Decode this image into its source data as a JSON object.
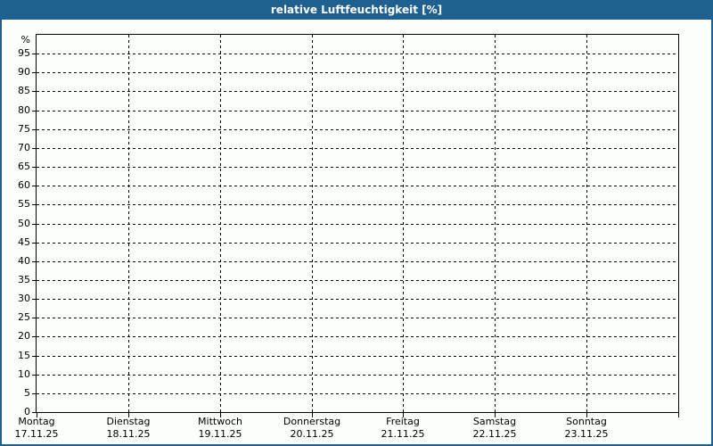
{
  "window": {
    "title": "relative Luftfeuchtigkeit [%]"
  },
  "colors": {
    "titlebar_bg": "#1e6191",
    "titlebar_text": "#ffffff",
    "frame_border": "#1e6191",
    "background": "#fcfefb",
    "grid_and_axis": "#000000"
  },
  "chart_data": {
    "type": "line",
    "title": "relative Luftfeuchtigkeit [%]",
    "ylabel": "%",
    "ylim": [
      0,
      100
    ],
    "y_tick_step": 5,
    "y_ticks": [
      0,
      5,
      10,
      15,
      20,
      25,
      30,
      35,
      40,
      45,
      50,
      55,
      60,
      65,
      70,
      75,
      80,
      85,
      90,
      95
    ],
    "x_days": [
      {
        "name": "Montag",
        "date": "17.11.25"
      },
      {
        "name": "Dienstag",
        "date": "18.11.25"
      },
      {
        "name": "Mittwoch",
        "date": "19.11.25"
      },
      {
        "name": "Donnerstag",
        "date": "20.11.25"
      },
      {
        "name": "Freitag",
        "date": "21.11.25"
      },
      {
        "name": "Samstag",
        "date": "22.11.25"
      },
      {
        "name": "Sonntag",
        "date": "23.11.25"
      }
    ],
    "series": [],
    "grid": "dashed",
    "legend": "none"
  }
}
